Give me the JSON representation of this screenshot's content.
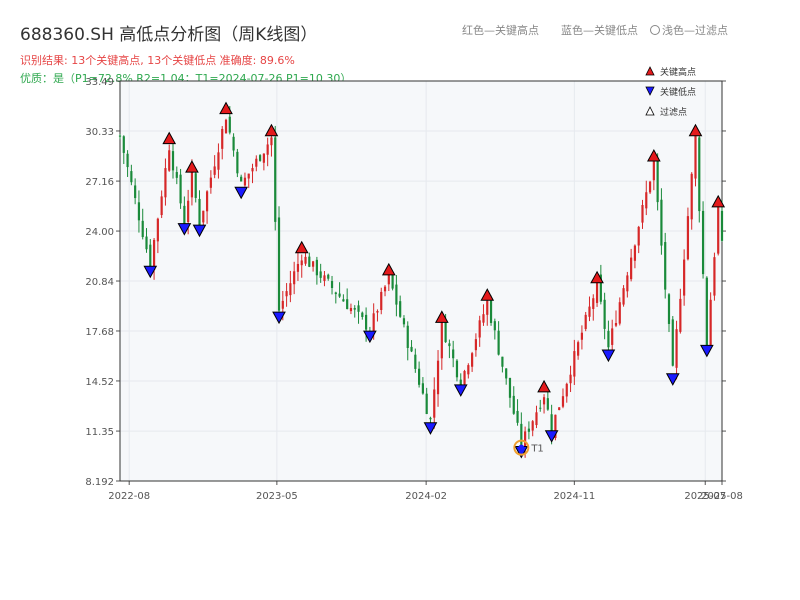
{
  "title": "688360.SH 高低点分析图（周K线图）",
  "subtitle_result": "识别结果: 13个关键高点, 13个关键低点  准确度: 89.6%",
  "subtitle_quality": "优质：是（P1=72.8%  R2=1.04；T1=2024-07-26 P1=10.30）",
  "top_hints": [
    "红色—关键高点",
    "蓝色—关键低点",
    "浅色—过滤点"
  ],
  "colors": {
    "up": "#d62728",
    "down": "#1a8a3a",
    "high_marker": "#e31a1c",
    "low_marker": "#1a1aff",
    "grid": "#e6e9ee",
    "plot_bg": "#f6f8fa",
    "t1_marker": "#f0a030"
  },
  "chart_data": {
    "type": "candlestick",
    "title": "688360.SH 高低点分析图（周K线图）",
    "x_range": [
      "2022-07-15",
      "2025-08-01"
    ],
    "ylim": [
      8.192,
      33.49
    ],
    "y_ticks": [
      "33.49",
      "30.33",
      "27.16",
      "24.00",
      "20.84",
      "17.68",
      "14.52",
      "11.35",
      "8.192"
    ],
    "x_ticks": [
      "2022-08",
      "2023-05",
      "2024-02",
      "2024-11",
      "2025-07",
      "2025-08"
    ],
    "legend": {
      "position": "top-right",
      "items": [
        "关键高点",
        "关键低点",
        "过滤点"
      ]
    },
    "key_highs": [
      {
        "date": "2022-10-14",
        "value": 29.4
      },
      {
        "date": "2022-11-25",
        "value": 27.6
      },
      {
        "date": "2023-01-27",
        "value": 31.3
      },
      {
        "date": "2023-04-21",
        "value": 29.9
      },
      {
        "date": "2023-06-16",
        "value": 22.5
      },
      {
        "date": "2023-11-24",
        "value": 21.1
      },
      {
        "date": "2024-03-01",
        "value": 18.1
      },
      {
        "date": "2024-05-24",
        "value": 19.5
      },
      {
        "date": "2024-09-06",
        "value": 13.7
      },
      {
        "date": "2024-12-13",
        "value": 20.6
      },
      {
        "date": "2025-03-28",
        "value": 28.3
      },
      {
        "date": "2025-06-13",
        "value": 29.9
      },
      {
        "date": "2025-07-25",
        "value": 25.4
      }
    ],
    "key_lows": [
      {
        "date": "2022-09-09",
        "value": 21.9
      },
      {
        "date": "2022-11-11",
        "value": 24.6
      },
      {
        "date": "2022-12-09",
        "value": 24.5
      },
      {
        "date": "2023-02-24",
        "value": 26.9
      },
      {
        "date": "2023-05-05",
        "value": 19.0
      },
      {
        "date": "2023-10-20",
        "value": 17.8
      },
      {
        "date": "2024-02-09",
        "value": 12.0
      },
      {
        "date": "2024-04-05",
        "value": 14.4
      },
      {
        "date": "2024-07-26",
        "value": 10.5
      },
      {
        "date": "2024-09-20",
        "value": 11.5
      },
      {
        "date": "2025-01-03",
        "value": 16.6
      },
      {
        "date": "2025-05-02",
        "value": 15.1
      },
      {
        "date": "2025-07-04",
        "value": 16.9
      }
    ],
    "t1": {
      "date": "2024-07-26",
      "value": 10.3,
      "label": "T1"
    }
  }
}
